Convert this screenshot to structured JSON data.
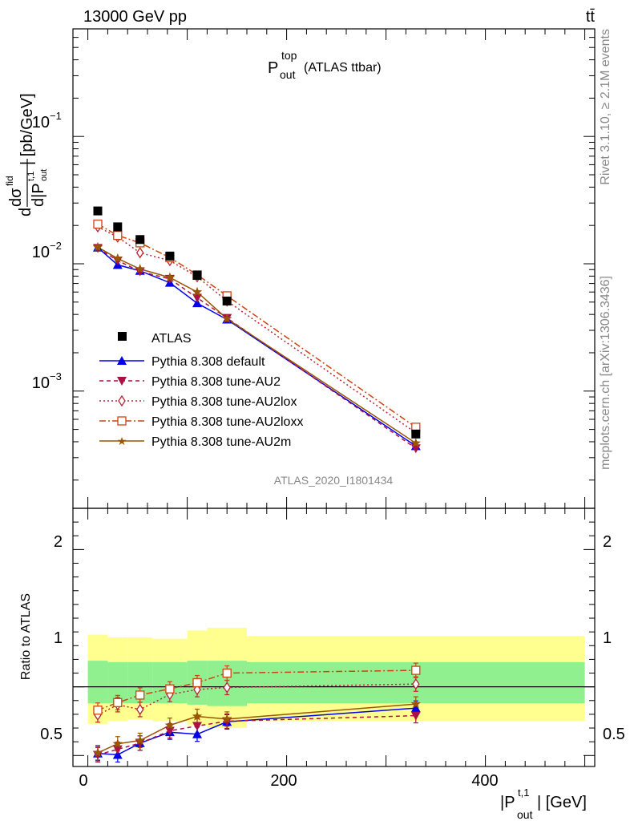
{
  "header": {
    "energy_label": "13000 GeV pp",
    "process_label": "tt̄"
  },
  "side_text": {
    "rivet": "Rivet 3.1.10, ≥ 2.1M events",
    "mcplots": "mcplots.cern.ch [arXiv:1306.3436]"
  },
  "chart_data": [
    {
      "type": "line",
      "title_main": "P",
      "title_sup": "top",
      "title_sub": "out",
      "title_rest": "(ATLAS ttbar)",
      "ylabel": "dσ/d|P_out^{t,1}| [pb/GeV]",
      "ylabel_parts": {
        "d1": "d",
        "d2": "d|P",
        "sigma": "dσ",
        "sup": "fid",
        "t1": "t,1",
        "out": "out",
        "unit": "| [pb/GeV]"
      },
      "yscale": "log",
      "ylim": [
        0.00012,
        0.7
      ],
      "xlim": [
        -15,
        510
      ],
      "yticks": [
        {
          "value": 0.1,
          "mantissa": "10",
          "exponent": "−1"
        },
        {
          "value": 0.01,
          "mantissa": "10",
          "exponent": "−2"
        },
        {
          "value": 0.001,
          "mantissa": "10",
          "exponent": "−3"
        }
      ],
      "watermark": "ATLAS_2020_I1801434",
      "legend_position": "middle-left",
      "data": {
        "name": "ATLAS",
        "x": [
          10,
          30,
          52.5,
          82.5,
          110,
          140,
          330
        ],
        "y": [
          0.026,
          0.0195,
          0.0155,
          0.0115,
          0.0081,
          0.0051,
          0.00046
        ]
      },
      "series": [
        {
          "name": "Pythia 8.308 default",
          "color": "#0000ee",
          "marker": "triangle-up",
          "dash": "solid",
          "x": [
            10,
            30,
            52.5,
            82.5,
            110,
            140,
            330
          ],
          "y": [
            0.0134,
            0.0098,
            0.0088,
            0.0071,
            0.0049,
            0.00365,
            0.00037
          ]
        },
        {
          "name": "Pythia 8.308 tune-AU2",
          "color": "#aa1144",
          "marker": "triangle-down",
          "dash": "dashed",
          "x": [
            10,
            30,
            52.5,
            82.5,
            110,
            140,
            330
          ],
          "y": [
            0.0133,
            0.0106,
            0.0087,
            0.0076,
            0.0054,
            0.00375,
            0.000355
          ]
        },
        {
          "name": "Pythia 8.308 tune-AU2lox",
          "color": "#bb2233",
          "marker": "diamond-open",
          "dash": "dotted",
          "x": [
            10,
            30,
            52.5,
            82.5,
            110,
            140,
            330
          ],
          "y": [
            0.0195,
            0.0162,
            0.0122,
            0.0106,
            0.0079,
            0.0051,
            0.00047
          ]
        },
        {
          "name": "Pythia 8.308 tune-AU2loxx",
          "color": "#cc4411",
          "marker": "square-open",
          "dash": "dashdot",
          "x": [
            10,
            30,
            52.5,
            82.5,
            110,
            140,
            330
          ],
          "y": [
            0.0205,
            0.0167,
            0.0146,
            0.0112,
            0.0082,
            0.0056,
            0.00052
          ]
        },
        {
          "name": "Pythia 8.308 tune-AU2m",
          "color": "#995500",
          "marker": "star",
          "dash": "solid",
          "x": [
            10,
            30,
            52.5,
            82.5,
            110,
            140,
            330
          ],
          "y": [
            0.0135,
            0.011,
            0.0091,
            0.0078,
            0.006,
            0.0037,
            0.00039
          ]
        }
      ]
    },
    {
      "type": "line",
      "xlabel": "|P_out^{t,1}| [GeV]",
      "xlabel_parts": {
        "pre": "|P",
        "sup": "t,1",
        "sub": "out",
        "post": "| [GeV]"
      },
      "ylabel": "Ratio to ATLAS",
      "ylim": [
        0.42,
        2.3
      ],
      "xlim": [
        -15,
        510
      ],
      "yticks": [
        "0.5",
        "1",
        "2"
      ],
      "xticks": [
        "0",
        "200",
        "400"
      ],
      "bands": {
        "bins": [
          0,
          20,
          40,
          65,
          100,
          120,
          160,
          500
        ],
        "inner_low": [
          0.88,
          0.88,
          0.88,
          0.88,
          0.87,
          0.86,
          0.88
        ],
        "inner_high": [
          1.19,
          1.18,
          1.18,
          1.18,
          1.19,
          1.19,
          1.18
        ],
        "outer_low": [
          0.73,
          0.75,
          0.76,
          0.75,
          0.72,
          0.7,
          0.75
        ],
        "outer_high": [
          1.38,
          1.36,
          1.36,
          1.35,
          1.41,
          1.43,
          1.37
        ],
        "inner_color": "#90f090",
        "outer_color": "#ffff90"
      },
      "series": [
        {
          "name": "Pythia 8.308 default",
          "x": [
            10,
            30,
            52.5,
            82.5,
            110,
            140,
            330
          ],
          "y": [
            0.515,
            0.505,
            0.59,
            0.67,
            0.655,
            0.745,
            0.845
          ]
        },
        {
          "name": "Pythia 8.308 tune-AU2",
          "x": [
            10,
            30,
            52.5,
            82.5,
            110,
            140,
            330
          ],
          "y": [
            0.505,
            0.545,
            0.59,
            0.68,
            0.715,
            0.75,
            0.79
          ]
        },
        {
          "name": "Pythia 8.308 tune-AU2lox",
          "x": [
            10,
            30,
            52.5,
            82.5,
            110,
            140,
            330
          ],
          "y": [
            0.795,
            0.87,
            0.835,
            0.945,
            0.98,
            0.995,
            1.02
          ]
        },
        {
          "name": "Pythia 8.308 tune-AU2loxx",
          "x": [
            10,
            30,
            52.5,
            82.5,
            110,
            140,
            330
          ],
          "y": [
            0.83,
            0.885,
            0.94,
            0.985,
            1.03,
            1.1,
            1.12
          ]
        },
        {
          "name": "Pythia 8.308 tune-AU2m",
          "x": [
            10,
            30,
            52.5,
            82.5,
            110,
            140,
            330
          ],
          "y": [
            0.52,
            0.585,
            0.61,
            0.72,
            0.785,
            0.765,
            0.875
          ]
        }
      ]
    }
  ]
}
